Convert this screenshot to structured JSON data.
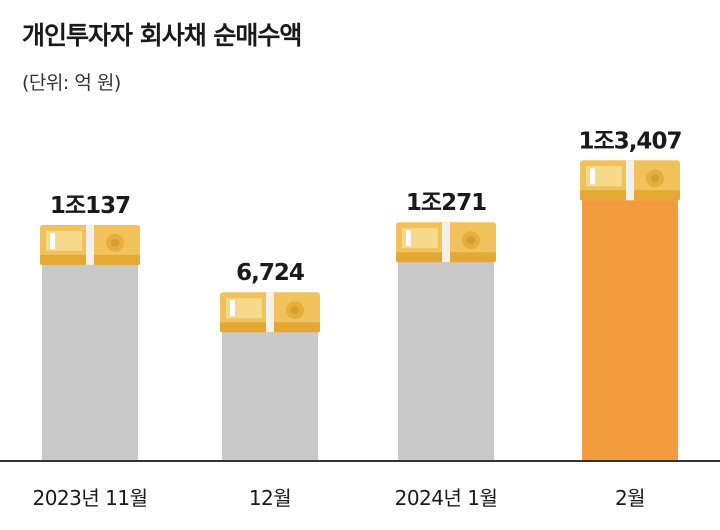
{
  "title": "개인투자자 회사채 순매수액",
  "unit_label": "(단위: 억 원)",
  "colors": {
    "bar_default": "#c9c9c9",
    "bar_highlight": "#f39c3f",
    "axis": "#333333",
    "bundle": "#f1c25b",
    "bundle_dark": "#e3a934",
    "band": "#f4f1ea"
  },
  "chart_data": {
    "type": "bar",
    "categories": [
      "2023년 11월",
      "12월",
      "2024년 1월",
      "2월"
    ],
    "values": [
      10137,
      6724,
      10271,
      13407
    ],
    "value_labels": [
      "1조137",
      "6,724",
      "1조271",
      "1조3,407"
    ],
    "highlight_index": 3,
    "ylim": [
      0,
      14000
    ],
    "grid": false,
    "legend": "none"
  }
}
